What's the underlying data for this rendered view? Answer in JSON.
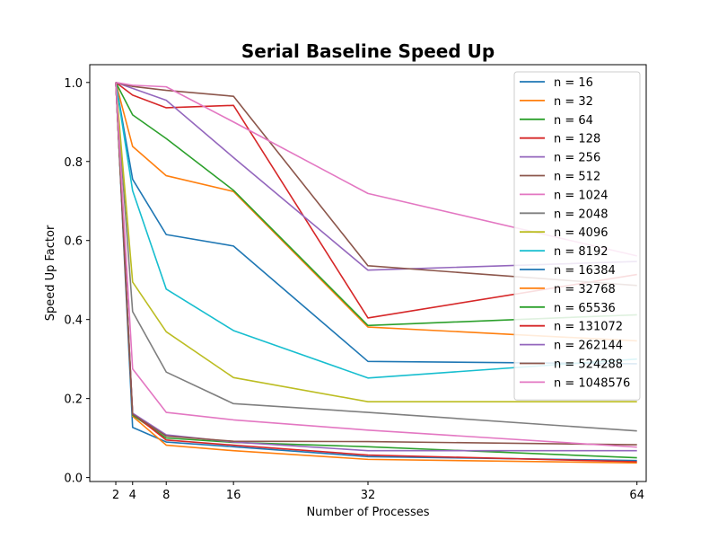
{
  "chart_data": {
    "type": "line",
    "title": "Serial Baseline Speed Up",
    "xlabel": "Number of Processes",
    "ylabel": "Speed Up Factor",
    "x": [
      2,
      4,
      8,
      16,
      32,
      64
    ],
    "xlim": [
      -1.1,
      65.1
    ],
    "ylim": [
      -0.01,
      1.045
    ],
    "xticks": [
      "2",
      "4",
      "8",
      "16",
      "32",
      "64"
    ],
    "yticks": [
      "0.0",
      "0.2",
      "0.4",
      "0.6",
      "0.8",
      "1.0"
    ],
    "grid": false,
    "legend": "top-right",
    "series": [
      {
        "name": "n = 16",
        "color": "#1f77b4",
        "values": [
          1.0,
          0.755,
          0.615,
          0.586,
          0.294,
          0.288
        ]
      },
      {
        "name": "n = 32",
        "color": "#ff7f0e",
        "values": [
          1.0,
          0.838,
          0.764,
          0.724,
          0.381,
          0.346
        ]
      },
      {
        "name": "n = 64",
        "color": "#2ca02c",
        "values": [
          1.0,
          0.918,
          0.858,
          0.727,
          0.385,
          0.412
        ]
      },
      {
        "name": "n = 128",
        "color": "#d62728",
        "values": [
          1.0,
          0.968,
          0.936,
          0.942,
          0.404,
          0.514
        ]
      },
      {
        "name": "n = 256",
        "color": "#9467bd",
        "values": [
          1.0,
          0.985,
          0.955,
          0.81,
          0.525,
          0.547
        ]
      },
      {
        "name": "n = 512",
        "color": "#8c564b",
        "values": [
          1.0,
          0.99,
          0.98,
          0.965,
          0.536,
          0.486
        ]
      },
      {
        "name": "n = 1024",
        "color": "#e377c2",
        "values": [
          1.0,
          0.993,
          0.989,
          0.9,
          0.719,
          0.561
        ]
      },
      {
        "name": "n = 2048",
        "color": "#7f7f7f",
        "values": [
          1.0,
          0.42,
          0.267,
          0.187,
          0.165,
          0.118
        ]
      },
      {
        "name": "n = 4096",
        "color": "#bcbd22",
        "values": [
          1.0,
          0.495,
          0.369,
          0.253,
          0.192,
          0.192
        ]
      },
      {
        "name": "n = 8192",
        "color": "#17becf",
        "values": [
          1.0,
          0.726,
          0.477,
          0.372,
          0.252,
          0.3
        ]
      },
      {
        "name": "n = 16384",
        "color": "#1f77b4",
        "values": [
          1.0,
          0.127,
          0.09,
          0.078,
          0.053,
          0.043
        ]
      },
      {
        "name": "n = 32768",
        "color": "#ff7f0e",
        "values": [
          1.0,
          0.155,
          0.082,
          0.068,
          0.046,
          0.037
        ]
      },
      {
        "name": "n = 65536",
        "color": "#2ca02c",
        "values": [
          1.0,
          0.158,
          0.1,
          0.089,
          0.078,
          0.05
        ]
      },
      {
        "name": "n = 131072",
        "color": "#d62728",
        "values": [
          1.0,
          0.162,
          0.095,
          0.082,
          0.057,
          0.04
        ]
      },
      {
        "name": "n = 262144",
        "color": "#9467bd",
        "values": [
          1.0,
          0.163,
          0.108,
          0.09,
          0.068,
          0.068
        ]
      },
      {
        "name": "n = 524288",
        "color": "#8c564b",
        "values": [
          1.0,
          0.16,
          0.105,
          0.092,
          0.091,
          0.083
        ]
      },
      {
        "name": "n = 1048576",
        "color": "#e377c2",
        "values": [
          1.0,
          0.275,
          0.165,
          0.146,
          0.12,
          0.077
        ]
      }
    ]
  }
}
